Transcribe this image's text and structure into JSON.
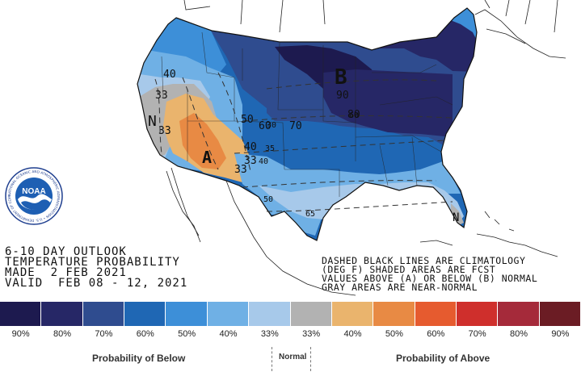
{
  "outlook": {
    "title_line1": "6-10 DAY OUTLOOK",
    "title_line2": "TEMPERATURE PROBABILITY",
    "made": "MADE  2 FEB 2021",
    "valid": "VALID  FEB 08 - 12, 2021"
  },
  "notes": {
    "line1": "DASHED BLACK LINES ARE CLIMATOLOGY",
    "line2": "(DEG F) SHADED AREAS ARE FCST",
    "line3": "VALUES ABOVE (A) OR BELOW (B) NORMAL",
    "line4": "GRAY AREAS ARE NEAR-NORMAL"
  },
  "map_labels": {
    "b": "B",
    "a": "A",
    "n_west": "N",
    "n_fl": "N",
    "p90": "90",
    "p80": "80",
    "p70": "70",
    "p60": "60",
    "p50": "50",
    "p40a": "40",
    "p40b": "40",
    "p33a": "33",
    "p33b": "33",
    "p33c": "33",
    "p40c": "40",
    "p35": "35",
    "p_50": "50",
    "p_65": "65",
    "p30": "30",
    "p60b": "60"
  },
  "logo": {
    "name": "NOAA",
    "ring_text": "NATIONAL OCEANIC AND ATMOSPHERIC ADMINISTRATION • U.S. DEPARTMENT OF COMMERCE"
  },
  "legend": {
    "ticks": [
      "90%",
      "80%",
      "70%",
      "60%",
      "50%",
      "40%",
      "33%",
      "33%",
      "40%",
      "50%",
      "60%",
      "70%",
      "80%",
      "90%"
    ],
    "colors": [
      "#1d1a4f",
      "#262766",
      "#2f4c8f",
      "#1f67b4",
      "#3d8fd8",
      "#6fb0e5",
      "#a7c9ea",
      "#b2b2b2",
      "#eab46d",
      "#e88a44",
      "#e65b2f",
      "#cf2f2c",
      "#a52a3a",
      "#6b1c24"
    ],
    "caption_below": "Probability of Below",
    "caption_normal": "Normal",
    "caption_above": "Probability of Above"
  }
}
